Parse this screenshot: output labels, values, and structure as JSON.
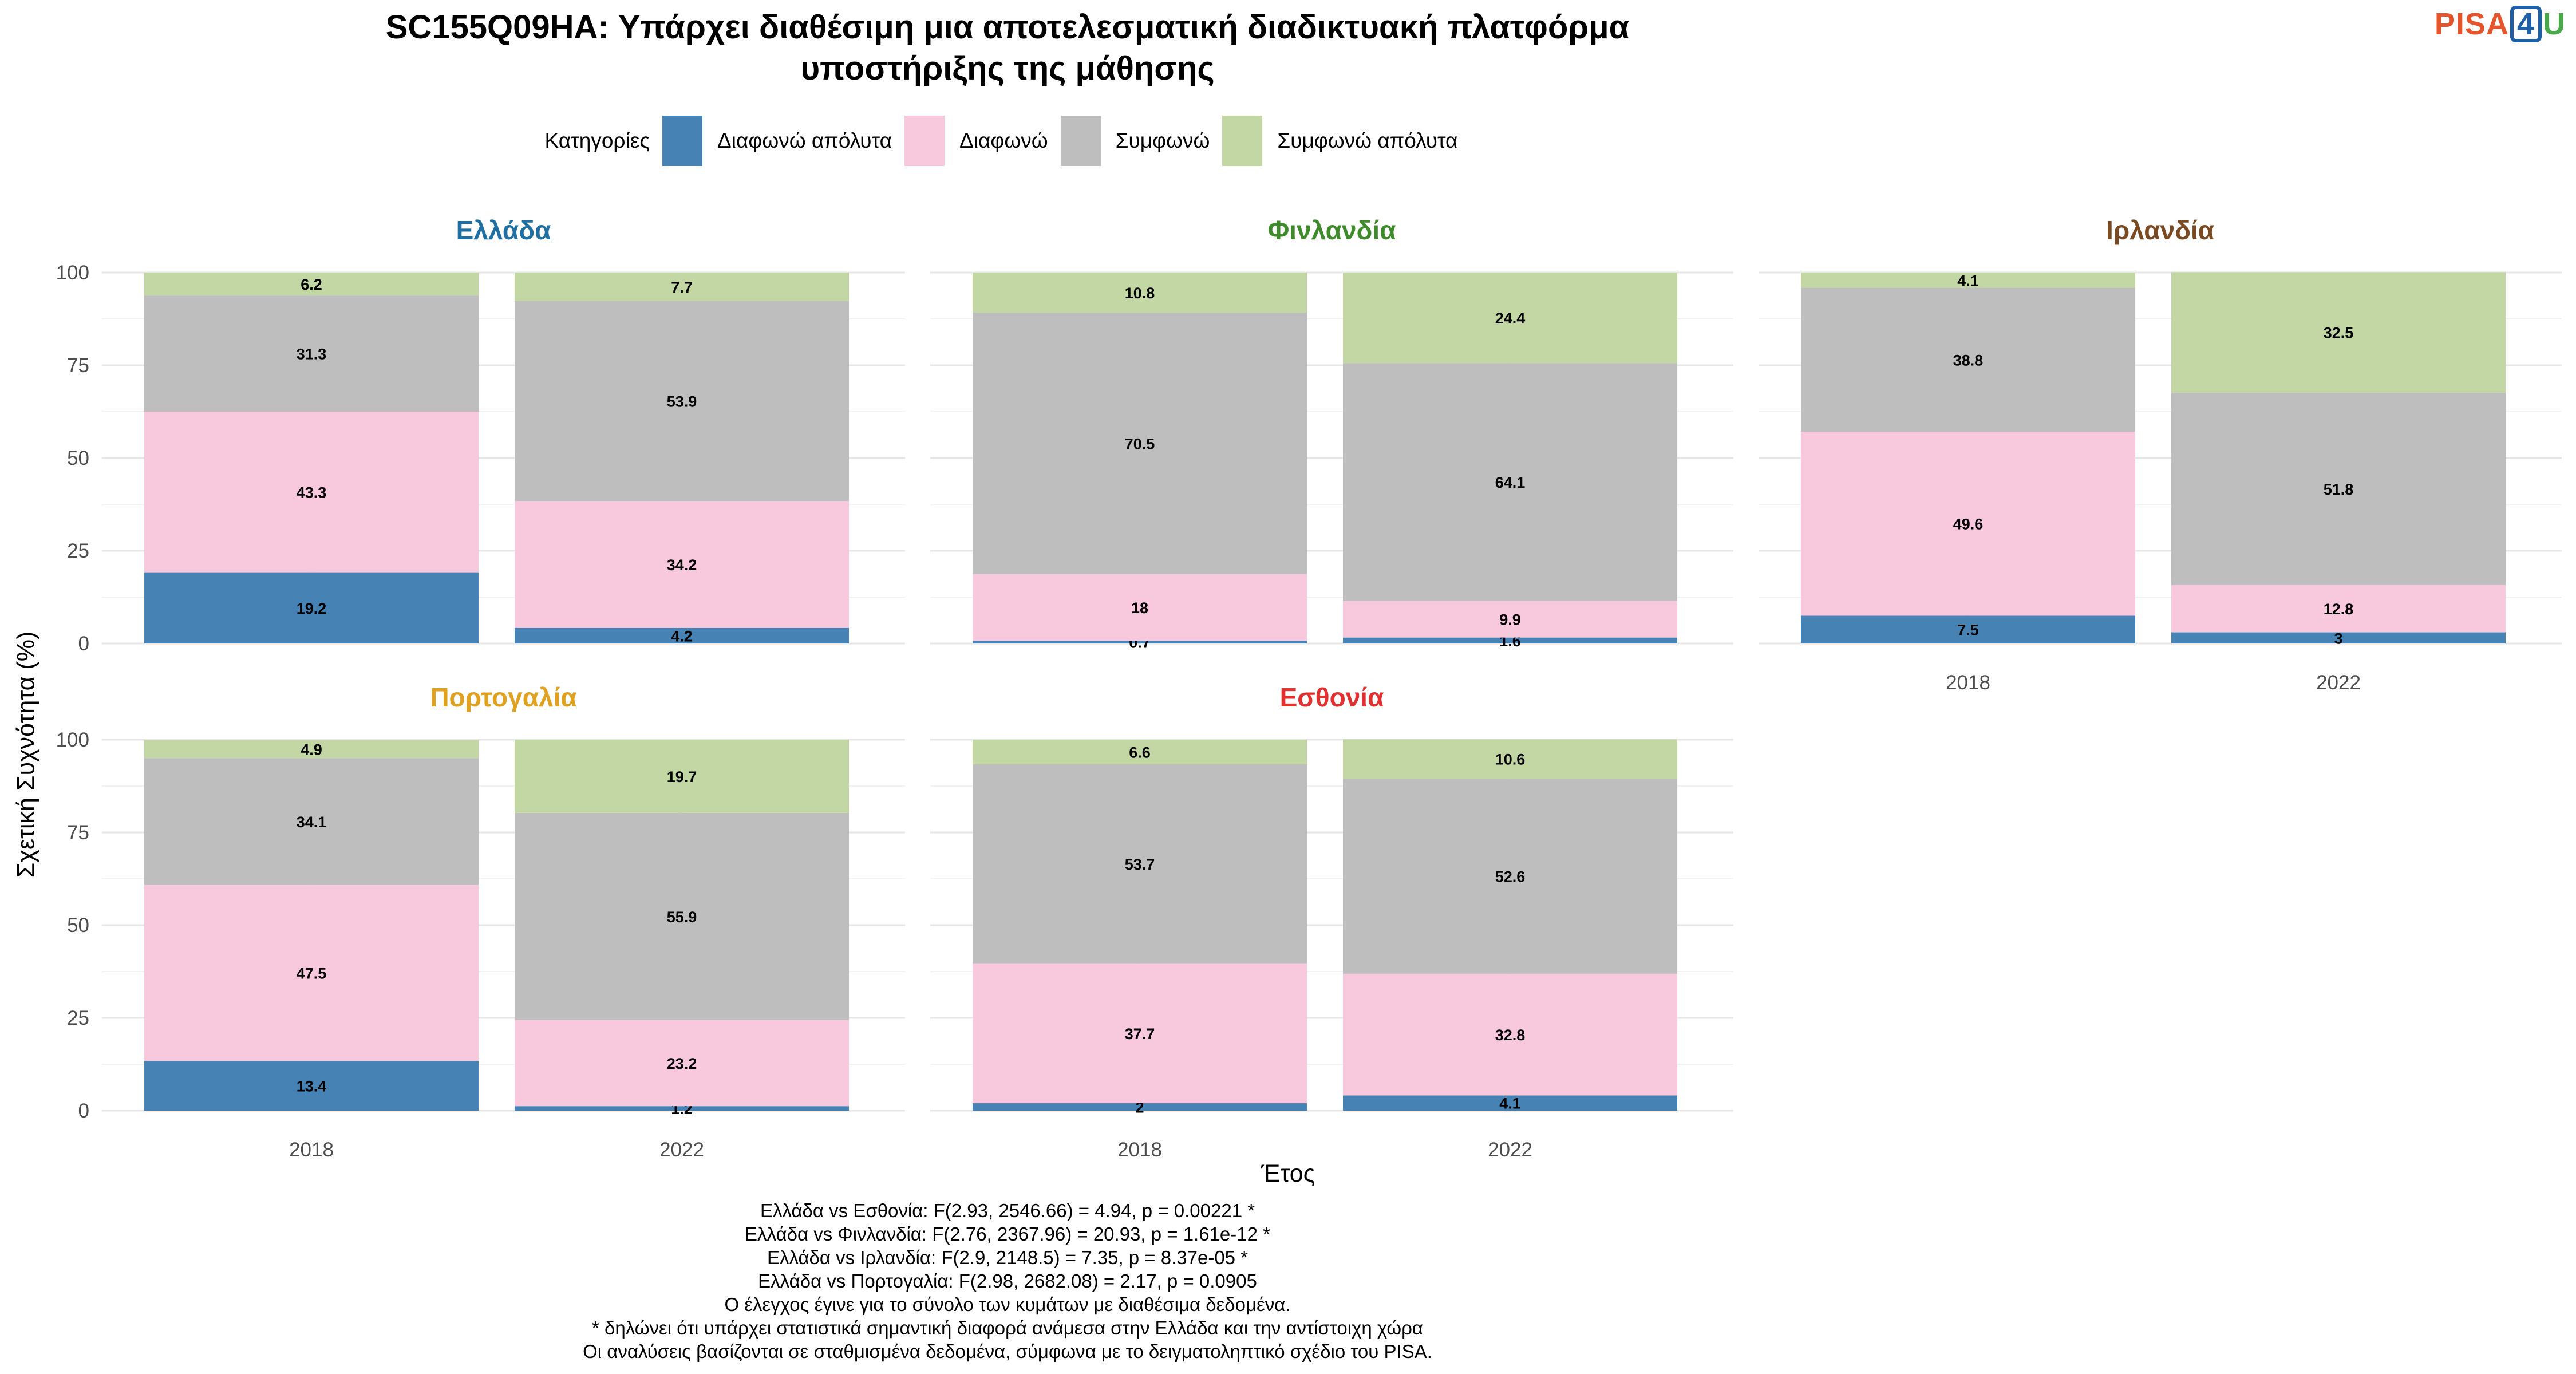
{
  "title_lines": [
    "SC155Q09HA: Υπάρχει διαθέσιμη μια αποτελεσματική διαδικτυακή πλατφόρμα",
    "υποστήριξης της μάθησης"
  ],
  "logo": {
    "part1": "PISA",
    "part2": "4",
    "part3": "U"
  },
  "legend": {
    "title": "Κατηγορίες"
  },
  "notes": [
    "Ελλάδα vs Εσθονία: F(2.93, 2546.66) = 4.94, p = 0.00221 *",
    "Ελλάδα vs Φινλανδία: F(2.76, 2367.96) = 20.93, p = 1.61e-12 *",
    "Ελλάδα vs Ιρλανδία: F(2.9, 2148.5) = 7.35, p = 8.37e-05 *",
    "Ελλάδα vs Πορτογαλία: F(2.98, 2682.08) = 2.17, p = 0.0905",
    "Ο έλεγχος έγινε για το σύνολο των κυμάτων με διαθέσιμα δεδομένα.",
    "* δηλώνει ότι υπάρχει στατιστικά σημαντική διαφορά ανάμεσα στην Ελλάδα και την αντίστοιχη χώρα",
    "Οι αναλύσεις βασίζονται σε σταθμισμένα δεδομένα, σύμφωνα με το δειγματοληπτικό σχέδιο του PISA."
  ],
  "chart_data": {
    "type": "bar",
    "stacked": true,
    "xlabel": "Έτος",
    "ylabel": "Σχετική Συχνότητα (%)",
    "ylim": [
      0,
      100
    ],
    "yticks": [
      0,
      25,
      50,
      75,
      100
    ],
    "categories": [
      "2018",
      "2022"
    ],
    "series": [
      {
        "name": "Διαφωνώ απόλυτα",
        "color": "#4682b4"
      },
      {
        "name": "Διαφωνώ",
        "color": "#f8c8dc"
      },
      {
        "name": "Συμφωνώ",
        "color": "#bebebe"
      },
      {
        "name": "Συμφωνώ απόλυτα",
        "color": "#c3d7a4"
      }
    ],
    "panels": [
      {
        "name": "Ελλάδα",
        "color": "#1f6fa3",
        "values": {
          "2018": [
            19.2,
            43.3,
            31.3,
            6.2
          ],
          "2022": [
            4.2,
            34.2,
            53.9,
            7.7
          ]
        }
      },
      {
        "name": "Φινλανδία",
        "color": "#3f8a2a",
        "values": {
          "2018": [
            0.7,
            18,
            70.5,
            10.8
          ],
          "2022": [
            1.6,
            9.9,
            64.1,
            24.4
          ]
        }
      },
      {
        "name": "Ιρλανδία",
        "color": "#7a4a22",
        "values": {
          "2018": [
            7.5,
            49.6,
            38.8,
            4.1
          ],
          "2022": [
            3,
            12.8,
            51.8,
            32.5
          ]
        }
      },
      {
        "name": "Πορτογαλία",
        "color": "#e0a020",
        "values": {
          "2018": [
            13.4,
            47.5,
            34.1,
            4.9
          ],
          "2022": [
            1.2,
            23.2,
            55.9,
            19.7
          ]
        }
      },
      {
        "name": "Εσθονία",
        "color": "#e03030",
        "values": {
          "2018": [
            2,
            37.7,
            53.7,
            6.6
          ],
          "2022": [
            4.1,
            32.8,
            52.6,
            10.6
          ]
        }
      }
    ]
  }
}
